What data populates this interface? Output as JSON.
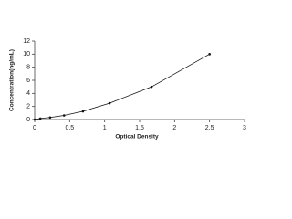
{
  "chart_data": {
    "type": "line",
    "x_label": "Optical Density",
    "y_label": "Concentration(ng/mL)",
    "series": [
      {
        "color": "#111111",
        "x": [
          0.0,
          0.08,
          0.22,
          0.42,
          0.69,
          1.07,
          1.67,
          2.5
        ],
        "values": [
          0,
          0.156,
          0.312,
          0.625,
          1.25,
          2.5,
          5,
          10
        ]
      }
    ],
    "xlim": [
      0,
      3
    ],
    "xticks": [
      0,
      0.5,
      1,
      1.5,
      2,
      2.5,
      3
    ],
    "ylim": [
      0,
      12
    ],
    "yticks": [
      0,
      2,
      4,
      6,
      8,
      10,
      12
    ],
    "grid": false
  }
}
